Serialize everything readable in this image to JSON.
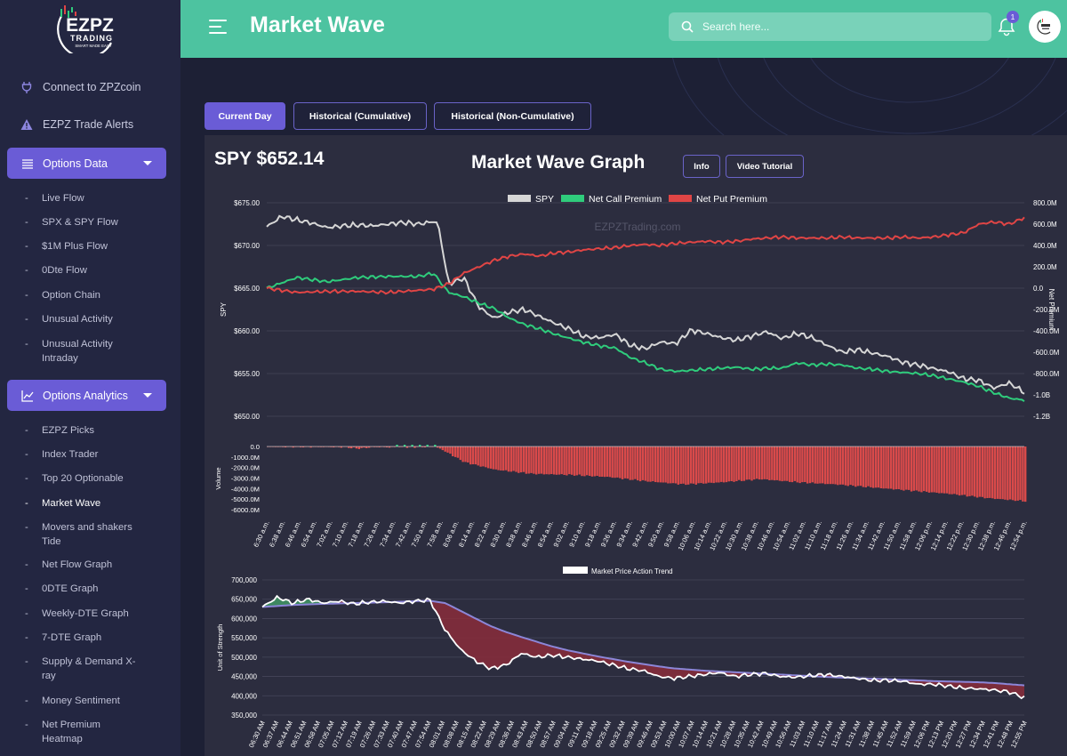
{
  "app": {
    "title": "Market Wave",
    "search_placeholder": "Search here...",
    "notification_count": "1",
    "logo_line1": "EZPZ",
    "logo_line2": "TRADING",
    "logo_tagline": "SMART MADE EASY"
  },
  "sidebar": {
    "top_links": [
      {
        "label": "Connect to ZPZcoin",
        "icon": "plug-icon"
      },
      {
        "label": "EZPZ Trade Alerts",
        "icon": "warning-icon"
      }
    ],
    "sections": [
      {
        "label": "Options Data",
        "icon": "list-icon",
        "items": [
          "Live Flow",
          "SPX & SPY Flow",
          "$1M Plus Flow",
          "0Dte Flow",
          "Option Chain",
          "Unusual Activity",
          "Unusual Activity Intraday"
        ]
      },
      {
        "label": "Options Analytics",
        "icon": "chart-line-icon",
        "items": [
          "EZPZ Picks",
          "Index Trader",
          "Top 20 Optionable",
          "Market Wave",
          "Movers and shakers Tide",
          "Net Flow Graph",
          "0DTE Graph",
          "Weekly-DTE Graph",
          "7-DTE Graph",
          "Supply & Demand X-ray",
          "Money Sentiment",
          "Net Premium Heatmap"
        ]
      }
    ],
    "active_item": "Market Wave"
  },
  "tabs": [
    "Current Day",
    "Historical (Cumulative)",
    "Historical (Non-Cumulative)"
  ],
  "active_tab": "Current Day",
  "panel": {
    "ticker": "SPY $652.14",
    "graph_title": "Market Wave Graph",
    "info_label": "Info",
    "video_label": "Video Tutorial"
  },
  "chart_data": [
    {
      "type": "line",
      "title": "",
      "watermark": "EZPZTrading.com",
      "legend": [
        "SPY",
        "Net Call Premium",
        "Net Put Premium"
      ],
      "ylabel_left": "SPY",
      "ylabel_right": "Net Premium",
      "y_left_ticks": [
        "$675.00",
        "$670.00",
        "$665.00",
        "$660.00",
        "$655.00",
        "$650.00"
      ],
      "y_left_range": [
        650,
        675
      ],
      "y_right_ticks": [
        "800.0M",
        "600.0M",
        "400.0M",
        "200.0M",
        "0.0",
        "-200.0M",
        "-400.0M",
        "-600.0M",
        "-800.0M",
        "-1.0B",
        "-1.2B"
      ],
      "y_right_range": [
        -1200,
        800
      ],
      "series": [
        {
          "name": "SPY",
          "color": "#d6d6d6",
          "x": [
            0,
            2,
            4,
            6,
            8,
            10,
            12,
            14,
            16,
            18,
            20,
            22,
            22.6,
            24,
            26,
            28,
            30,
            32,
            34,
            36,
            38,
            40,
            42,
            44,
            46,
            48,
            50,
            52,
            54,
            56,
            58,
            60,
            62,
            64,
            66,
            68,
            70,
            72,
            74,
            76,
            78,
            80,
            82,
            84,
            86,
            88,
            90,
            92,
            94,
            96,
            98,
            100
          ],
          "values": [
            672.2,
            673.4,
            673,
            672.6,
            672.1,
            672.3,
            672.4,
            672.3,
            672.5,
            672.7,
            672.5,
            672.8,
            672.6,
            665.5,
            666.2,
            662.8,
            661.5,
            662.2,
            662.5,
            661.7,
            660.9,
            660.2,
            659.3,
            659.2,
            659.6,
            658.3,
            657.9,
            658.7,
            658.5,
            660.1,
            659.7,
            659.2,
            658.9,
            659.4,
            659.9,
            659.1,
            659.7,
            659.2,
            658.3,
            657.5,
            657.8,
            657.4,
            657,
            656.3,
            656,
            655.6,
            655.2,
            654.4,
            654.2,
            653.3,
            653.9,
            652.8
          ]
        },
        {
          "name": "Net Call Premium",
          "color": "#2fcc7c",
          "x": [
            0,
            4,
            8,
            12,
            16,
            20,
            22,
            24,
            26,
            28,
            30,
            32,
            34,
            36,
            38,
            40,
            42,
            44,
            46,
            48,
            50,
            52,
            54,
            56,
            58,
            60,
            62,
            64,
            66,
            68,
            70,
            72,
            74,
            76,
            78,
            80,
            82,
            84,
            86,
            88,
            90,
            92,
            94,
            96,
            98,
            100
          ],
          "values": [
            0,
            100,
            60,
            100,
            110,
            110,
            140,
            -40,
            -80,
            -140,
            -190,
            -280,
            -340,
            -380,
            -430,
            -470,
            -510,
            -540,
            -560,
            -650,
            -700,
            -760,
            -780,
            -770,
            -760,
            -750,
            -740,
            -760,
            -750,
            -750,
            -700,
            -720,
            -710,
            -720,
            -750,
            -760,
            -780,
            -790,
            -800,
            -820,
            -850,
            -880,
            -920,
            -980,
            -1030,
            -1050
          ]
        },
        {
          "name": "Net Put Premium",
          "color": "#e04545",
          "x": [
            0,
            4,
            8,
            12,
            16,
            20,
            22,
            24,
            26,
            28,
            30,
            32,
            34,
            36,
            38,
            40,
            42,
            44,
            46,
            48,
            50,
            52,
            54,
            56,
            58,
            60,
            62,
            64,
            66,
            68,
            70,
            72,
            74,
            76,
            78,
            80,
            82,
            84,
            86,
            88,
            90,
            92,
            94,
            96,
            98,
            100
          ],
          "values": [
            0,
            -40,
            -30,
            -30,
            -40,
            -20,
            -10,
            40,
            140,
            200,
            260,
            300,
            320,
            300,
            330,
            340,
            360,
            370,
            380,
            400,
            410,
            400,
            420,
            430,
            440,
            430,
            440,
            460,
            470,
            480,
            470,
            470,
            470,
            480,
            470,
            470,
            470,
            480,
            470,
            480,
            500,
            520,
            600,
            620,
            600,
            660
          ]
        }
      ]
    },
    {
      "type": "bar",
      "ylabel": "Volume",
      "y_ticks": [
        "0.0",
        "-1000.0M",
        "-2000.0M",
        "-3000.0M",
        "-4000.0M",
        "-5000.0M",
        "-6000.0M"
      ],
      "y_range": [
        -6000,
        0
      ],
      "x_labels": [
        "6:30 a.m.",
        "6:38 a.m.",
        "6:46 a.m.",
        "6:54 a.m.",
        "7:02 a.m.",
        "7:10 a.m.",
        "7:18 a.m.",
        "7:26 a.m.",
        "7:34 a.m.",
        "7:42 a.m.",
        "7:50 a.m.",
        "7:58 a.m.",
        "8:06 a.m.",
        "8:14 a.m.",
        "8:22 a.m.",
        "8:30 a.m.",
        "8:38 a.m.",
        "8:46 a.m.",
        "8:54 a.m.",
        "9:02 a.m.",
        "9:10 a.m.",
        "9:18 a.m.",
        "9:26 a.m.",
        "9:34 a.m.",
        "9:42 a.m.",
        "9:50 a.m.",
        "9:58 a.m.",
        "10:06 a.m.",
        "10:14 a.m.",
        "10:22 a.m.",
        "10:30 a.m.",
        "10:38 a.m.",
        "10:46 a.m.",
        "10:54 a.m.",
        "11:02 a.m.",
        "11:10 a.m.",
        "11:18 a.m.",
        "11:26 a.m.",
        "11:34 a.m.",
        "11:42 a.m.",
        "11:50 a.m.",
        "11:58 a.m.",
        "12:06 p.m.",
        "12:14 p.m.",
        "12:22 p.m.",
        "12:30 p.m.",
        "12:38 p.m.",
        "12:46 p.m.",
        "12:54 p.m."
      ],
      "x": [
        0,
        6,
        10,
        12,
        14,
        16,
        20,
        22,
        23,
        26,
        30,
        35,
        40,
        45,
        50,
        55,
        60,
        65,
        70,
        75,
        80,
        85,
        90,
        95,
        100
      ],
      "values": [
        -30,
        -40,
        -60,
        -200,
        -50,
        -80,
        -60,
        0,
        -300,
        -1500,
        -2200,
        -2600,
        -2700,
        -2900,
        -3300,
        -3600,
        -3400,
        -3100,
        -3400,
        -3600,
        -3900,
        -4200,
        -4500,
        -4900,
        -5200
      ]
    },
    {
      "type": "area",
      "legend": [
        "Market Price Action Trend"
      ],
      "ylabel": "Unit of Strength",
      "y_ticks": [
        "700,000",
        "650,000",
        "600,000",
        "550,000",
        "500,000",
        "450,000",
        "400,000",
        "350,000"
      ],
      "y_range": [
        350000,
        700000
      ],
      "x_labels": [
        "06:30 AM",
        "06:37 AM",
        "06:44 AM",
        "06:51 AM",
        "06:58 AM",
        "07:05 AM",
        "07:12 AM",
        "07:19 AM",
        "07:26 AM",
        "07:33 AM",
        "07:40 AM",
        "07:47 AM",
        "07:54 AM",
        "08:01 AM",
        "08:08 AM",
        "08:15 AM",
        "08:22 AM",
        "08:29 AM",
        "08:36 AM",
        "08:43 AM",
        "08:50 AM",
        "08:57 AM",
        "09:04 AM",
        "09:11 AM",
        "09:18 AM",
        "09:25 AM",
        "09:32 AM",
        "09:39 AM",
        "09:46 AM",
        "09:53 AM",
        "10:00 AM",
        "10:07 AM",
        "10:14 AM",
        "10:21 AM",
        "10:28 AM",
        "10:35 AM",
        "10:42 AM",
        "10:49 AM",
        "10:56 AM",
        "11:03 AM",
        "11:10 AM",
        "11:17 AM",
        "11:24 AM",
        "11:31 AM",
        "11:38 AM",
        "11:45 AM",
        "11:52 AM",
        "11:59 AM",
        "12:06 PM",
        "12:13 PM",
        "12:20 PM",
        "12:27 PM",
        "12:34 PM",
        "12:41 PM",
        "12:48 PM",
        "12:55 PM"
      ],
      "series": [
        {
          "name": "price",
          "color": "#ffffff",
          "x": [
            0,
            2,
            4,
            6,
            8,
            10,
            12,
            14,
            16,
            18,
            20,
            22,
            24,
            26,
            28,
            30,
            32,
            34,
            36,
            38,
            40,
            42,
            44,
            46,
            48,
            50,
            52,
            54,
            56,
            58,
            60,
            62,
            64,
            66,
            68,
            70,
            72,
            74,
            76,
            78,
            80,
            82,
            84,
            86,
            88,
            90,
            92,
            94,
            96,
            98,
            100
          ],
          "values": [
            630000,
            655000,
            640000,
            650000,
            640000,
            645000,
            638000,
            642000,
            645000,
            640000,
            645000,
            648000,
            570000,
            520000,
            490000,
            470000,
            480000,
            510000,
            500000,
            505000,
            500000,
            495000,
            490000,
            480000,
            470000,
            465000,
            450000,
            445000,
            450000,
            455000,
            460000,
            450000,
            455000,
            458000,
            450000,
            448000,
            452000,
            455000,
            450000,
            445000,
            440000,
            440000,
            438000,
            430000,
            430000,
            425000,
            420000,
            418000,
            415000,
            410000,
            395000
          ]
        },
        {
          "name": "trend",
          "color": "#8c86d8",
          "x": [
            0,
            4,
            8,
            12,
            16,
            20,
            22,
            24,
            26,
            28,
            30,
            32,
            34,
            36,
            38,
            40,
            42,
            44,
            46,
            48,
            50,
            52,
            54,
            56,
            58,
            60,
            62,
            64,
            66,
            68,
            70,
            72,
            74,
            76,
            78,
            80,
            82,
            84,
            86,
            88,
            90,
            92,
            94,
            96,
            98,
            100
          ],
          "values": [
            630000,
            635000,
            638000,
            640000,
            642000,
            645000,
            646000,
            640000,
            620000,
            600000,
            580000,
            565000,
            552000,
            540000,
            528000,
            518000,
            510000,
            502000,
            495000,
            488000,
            482000,
            476000,
            471000,
            468000,
            465000,
            463000,
            461000,
            459000,
            457000,
            455000,
            453000,
            451000,
            449000,
            447000,
            446000,
            444000,
            443000,
            441000,
            440000,
            438000,
            437000,
            436000,
            435000,
            433000,
            430000,
            427000
          ]
        }
      ]
    }
  ],
  "colors": {
    "header": "#4dc3a0",
    "sidebar": "#232641",
    "accent": "#6a5cd6",
    "spy": "#d6d6d6",
    "call": "#2fcc7c",
    "put": "#e04545",
    "trend": "#8c86d8"
  }
}
